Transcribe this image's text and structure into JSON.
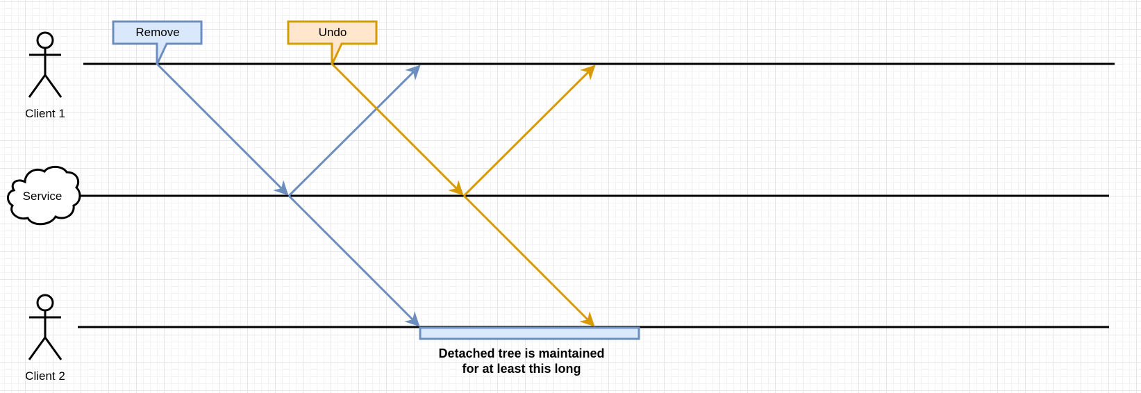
{
  "actors": {
    "client1": "Client 1",
    "service": "Service",
    "client2": "Client 2"
  },
  "callouts": {
    "remove": "Remove",
    "undo": "Undo"
  },
  "note": {
    "line1": "Detached tree is maintained",
    "line2": "for at least this long"
  },
  "colors": {
    "blue_stroke": "#6c8ebf",
    "blue_fill": "#dae8fc",
    "orange_stroke": "#d79b00",
    "orange_fill": "#ffe6cc",
    "line": "#000000"
  }
}
